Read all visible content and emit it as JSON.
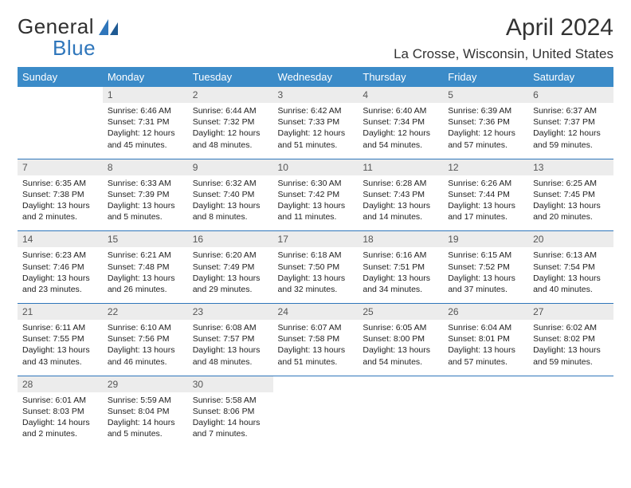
{
  "brand": {
    "general": "General",
    "blue": "Blue"
  },
  "colors": {
    "brand_blue": "#2f76bb",
    "header_bg": "#3b8bc8",
    "header_text": "#ffffff",
    "daynum_bg": "#ececec",
    "daynum_text": "#555555",
    "body_text": "#222222",
    "separator": "#2f76bb",
    "page_bg": "#ffffff",
    "title_text": "#333333"
  },
  "typography": {
    "month_fontsize": 30,
    "location_fontsize": 17,
    "dow_fontsize": 13,
    "daynum_fontsize": 12,
    "cell_fontsize": 10.5
  },
  "title": "April 2024",
  "location": "La Crosse, Wisconsin, United States",
  "days_of_week": [
    "Sunday",
    "Monday",
    "Tuesday",
    "Wednesday",
    "Thursday",
    "Friday",
    "Saturday"
  ],
  "weeks": [
    [
      null,
      {
        "n": "1",
        "sunrise": "6:46 AM",
        "sunset": "7:31 PM",
        "daylight": "12 hours and 45 minutes."
      },
      {
        "n": "2",
        "sunrise": "6:44 AM",
        "sunset": "7:32 PM",
        "daylight": "12 hours and 48 minutes."
      },
      {
        "n": "3",
        "sunrise": "6:42 AM",
        "sunset": "7:33 PM",
        "daylight": "12 hours and 51 minutes."
      },
      {
        "n": "4",
        "sunrise": "6:40 AM",
        "sunset": "7:34 PM",
        "daylight": "12 hours and 54 minutes."
      },
      {
        "n": "5",
        "sunrise": "6:39 AM",
        "sunset": "7:36 PM",
        "daylight": "12 hours and 57 minutes."
      },
      {
        "n": "6",
        "sunrise": "6:37 AM",
        "sunset": "7:37 PM",
        "daylight": "12 hours and 59 minutes."
      }
    ],
    [
      {
        "n": "7",
        "sunrise": "6:35 AM",
        "sunset": "7:38 PM",
        "daylight": "13 hours and 2 minutes."
      },
      {
        "n": "8",
        "sunrise": "6:33 AM",
        "sunset": "7:39 PM",
        "daylight": "13 hours and 5 minutes."
      },
      {
        "n": "9",
        "sunrise": "6:32 AM",
        "sunset": "7:40 PM",
        "daylight": "13 hours and 8 minutes."
      },
      {
        "n": "10",
        "sunrise": "6:30 AM",
        "sunset": "7:42 PM",
        "daylight": "13 hours and 11 minutes."
      },
      {
        "n": "11",
        "sunrise": "6:28 AM",
        "sunset": "7:43 PM",
        "daylight": "13 hours and 14 minutes."
      },
      {
        "n": "12",
        "sunrise": "6:26 AM",
        "sunset": "7:44 PM",
        "daylight": "13 hours and 17 minutes."
      },
      {
        "n": "13",
        "sunrise": "6:25 AM",
        "sunset": "7:45 PM",
        "daylight": "13 hours and 20 minutes."
      }
    ],
    [
      {
        "n": "14",
        "sunrise": "6:23 AM",
        "sunset": "7:46 PM",
        "daylight": "13 hours and 23 minutes."
      },
      {
        "n": "15",
        "sunrise": "6:21 AM",
        "sunset": "7:48 PM",
        "daylight": "13 hours and 26 minutes."
      },
      {
        "n": "16",
        "sunrise": "6:20 AM",
        "sunset": "7:49 PM",
        "daylight": "13 hours and 29 minutes."
      },
      {
        "n": "17",
        "sunrise": "6:18 AM",
        "sunset": "7:50 PM",
        "daylight": "13 hours and 32 minutes."
      },
      {
        "n": "18",
        "sunrise": "6:16 AM",
        "sunset": "7:51 PM",
        "daylight": "13 hours and 34 minutes."
      },
      {
        "n": "19",
        "sunrise": "6:15 AM",
        "sunset": "7:52 PM",
        "daylight": "13 hours and 37 minutes."
      },
      {
        "n": "20",
        "sunrise": "6:13 AM",
        "sunset": "7:54 PM",
        "daylight": "13 hours and 40 minutes."
      }
    ],
    [
      {
        "n": "21",
        "sunrise": "6:11 AM",
        "sunset": "7:55 PM",
        "daylight": "13 hours and 43 minutes."
      },
      {
        "n": "22",
        "sunrise": "6:10 AM",
        "sunset": "7:56 PM",
        "daylight": "13 hours and 46 minutes."
      },
      {
        "n": "23",
        "sunrise": "6:08 AM",
        "sunset": "7:57 PM",
        "daylight": "13 hours and 48 minutes."
      },
      {
        "n": "24",
        "sunrise": "6:07 AM",
        "sunset": "7:58 PM",
        "daylight": "13 hours and 51 minutes."
      },
      {
        "n": "25",
        "sunrise": "6:05 AM",
        "sunset": "8:00 PM",
        "daylight": "13 hours and 54 minutes."
      },
      {
        "n": "26",
        "sunrise": "6:04 AM",
        "sunset": "8:01 PM",
        "daylight": "13 hours and 57 minutes."
      },
      {
        "n": "27",
        "sunrise": "6:02 AM",
        "sunset": "8:02 PM",
        "daylight": "13 hours and 59 minutes."
      }
    ],
    [
      {
        "n": "28",
        "sunrise": "6:01 AM",
        "sunset": "8:03 PM",
        "daylight": "14 hours and 2 minutes."
      },
      {
        "n": "29",
        "sunrise": "5:59 AM",
        "sunset": "8:04 PM",
        "daylight": "14 hours and 5 minutes."
      },
      {
        "n": "30",
        "sunrise": "5:58 AM",
        "sunset": "8:06 PM",
        "daylight": "14 hours and 7 minutes."
      },
      null,
      null,
      null,
      null
    ]
  ],
  "labels": {
    "sunrise": "Sunrise: ",
    "sunset": "Sunset: ",
    "daylight": "Daylight: "
  }
}
